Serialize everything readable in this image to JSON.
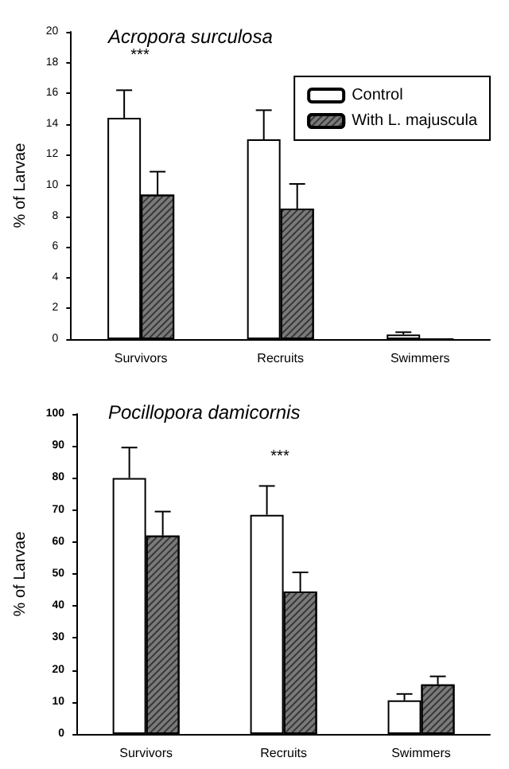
{
  "chart_data": [
    {
      "type": "bar",
      "title": "Acropora surculosa",
      "ylabel": "% of Larvae",
      "categories": [
        "Survivors",
        "Recruits",
        "Swimmers"
      ],
      "series": [
        {
          "name": "Control",
          "color": "#ffffff",
          "values": [
            14.4,
            13.0,
            0.3
          ],
          "errors": [
            [
              14.4,
              16.2
            ],
            [
              13.0,
              14.9
            ],
            [
              0.3,
              0.45
            ]
          ]
        },
        {
          "name": "With L. majuscula",
          "color": "#7a7a7a",
          "values": [
            9.4,
            8.5,
            0
          ],
          "errors": [
            [
              9.4,
              10.9
            ],
            [
              8.5,
              10.1
            ],
            null
          ]
        }
      ],
      "ylim": [
        0,
        20
      ],
      "yticks": [
        0,
        2,
        4,
        6,
        8,
        10,
        12,
        14,
        16,
        18,
        20
      ],
      "grid": false,
      "legend": "top right",
      "annotations": [
        "***"
      ]
    },
    {
      "type": "bar",
      "title": "Pocillopora damicornis",
      "ylabel": "% of Larvae",
      "categories": [
        "Survivors",
        "Recruits",
        "Swimmers"
      ],
      "series": [
        {
          "color": "#ffffff",
          "values": [
            80,
            68.5,
            10.5
          ],
          "errors": [
            [
              80,
              89.5
            ],
            [
              68.5,
              77.5
            ],
            [
              10.5,
              12.5
            ]
          ]
        },
        {
          "color": "#7a7a7a",
          "values": [
            62,
            44.5,
            15.5
          ],
          "errors": [
            [
              62,
              69.5
            ],
            [
              44.5,
              50.5
            ],
            [
              15.5,
              18
            ]
          ]
        }
      ],
      "ylim": [
        0,
        100
      ],
      "yticks": [
        0,
        10,
        20,
        30,
        40,
        50,
        60,
        70,
        80,
        90,
        100
      ],
      "grid": false,
      "legend": false,
      "annotations": [
        "***"
      ]
    }
  ]
}
